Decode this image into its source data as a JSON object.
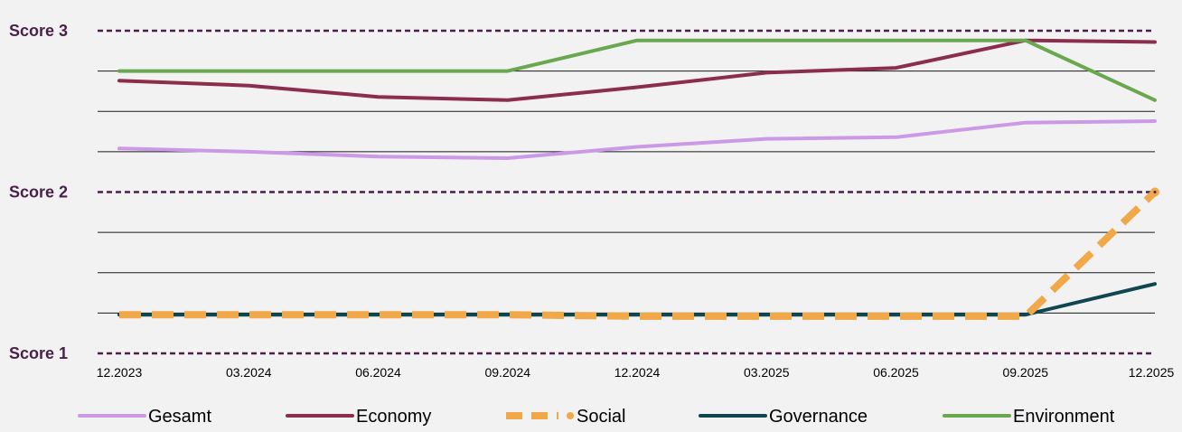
{
  "chart_data": {
    "type": "line",
    "title": "",
    "xlabel": "",
    "ylabel": "",
    "categories": [
      "12.2023",
      "03.2024",
      "06.2024",
      "09.2024",
      "12.2024",
      "03.2025",
      "06.2025",
      "09.2025",
      "12.2025"
    ],
    "ylim": [
      1,
      3
    ],
    "grid": true,
    "grid_step": 0.25,
    "score_lines": [
      {
        "label": "Score 3",
        "value": 3
      },
      {
        "label": "Score 2",
        "value": 2
      },
      {
        "label": "Score 1",
        "value": 1
      }
    ],
    "legend_position": "bottom",
    "series": [
      {
        "name": "Gesamt",
        "color": "#cc99e6",
        "style": "solid",
        "values": [
          2.27,
          2.25,
          2.22,
          2.21,
          2.28,
          2.33,
          2.34,
          2.43,
          2.44
        ]
      },
      {
        "name": "Economy",
        "color": "#8b2e4e",
        "style": "solid",
        "values": [
          2.69,
          2.66,
          2.59,
          2.57,
          2.65,
          2.74,
          2.77,
          2.94,
          2.93
        ]
      },
      {
        "name": "Social",
        "color": "#f0a848",
        "style": "dashed",
        "values": [
          1.24,
          1.24,
          1.24,
          1.24,
          1.23,
          1.23,
          1.23,
          1.23,
          2.0
        ]
      },
      {
        "name": "Governance",
        "color": "#0f4650",
        "style": "solid",
        "values": [
          1.24,
          1.24,
          1.24,
          1.24,
          1.24,
          1.24,
          1.24,
          1.24,
          1.43
        ]
      },
      {
        "name": "Environment",
        "color": "#6aa84f",
        "style": "solid",
        "values": [
          2.75,
          2.75,
          2.75,
          2.75,
          2.94,
          2.94,
          2.94,
          2.94,
          2.57
        ]
      }
    ]
  },
  "colors": {
    "score_text": "#4a1f4a",
    "score_line": "#4a1f4a",
    "gridline": "#1a1a1a",
    "background": "#f2f2f2"
  }
}
